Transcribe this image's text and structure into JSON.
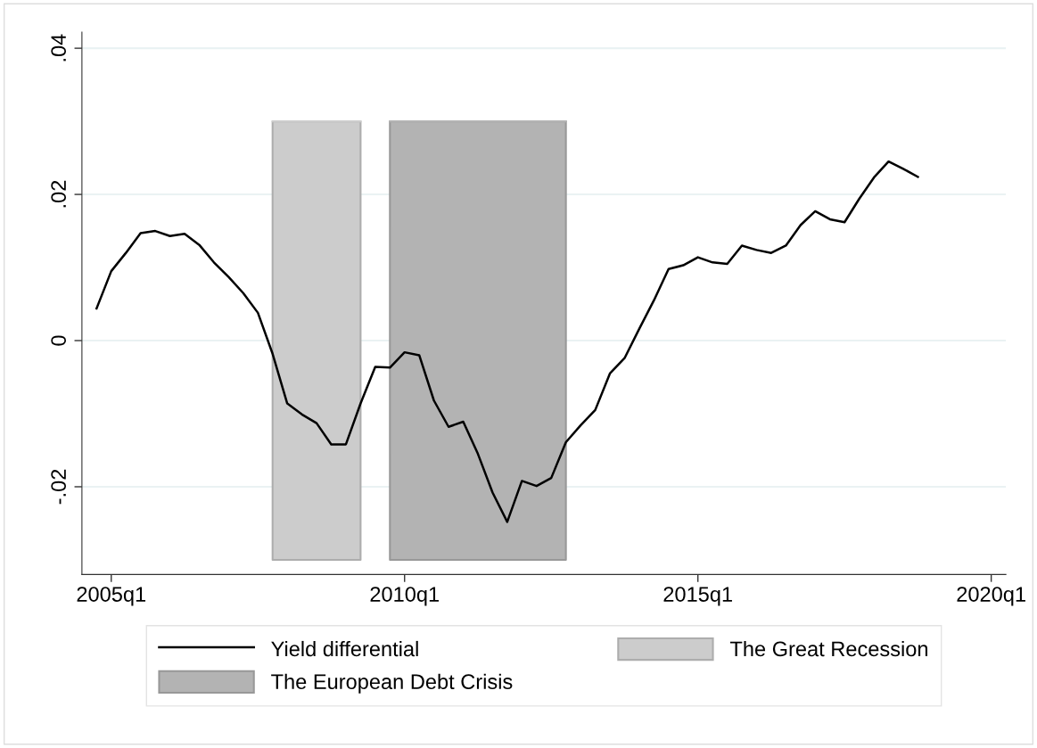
{
  "chart_data": {
    "type": "line",
    "x": [
      "2004-10",
      "2005-01",
      "2005-04",
      "2005-07",
      "2005-10",
      "2006-01",
      "2006-04",
      "2006-07",
      "2006-10",
      "2007-01",
      "2007-04",
      "2007-07",
      "2007-10",
      "2008-01",
      "2008-04",
      "2008-07",
      "2008-10",
      "2009-01",
      "2009-04",
      "2009-07",
      "2009-10",
      "2010-01",
      "2010-04",
      "2010-07",
      "2010-10",
      "2011-01",
      "2011-04",
      "2011-07",
      "2011-10",
      "2012-01",
      "2012-04",
      "2012-07",
      "2012-10",
      "2013-01",
      "2013-04",
      "2013-07",
      "2013-10",
      "2014-01",
      "2014-04",
      "2014-07",
      "2014-10",
      "2015-01",
      "2015-04",
      "2015-07",
      "2015-10",
      "2016-01",
      "2016-04",
      "2016-07",
      "2016-10",
      "2017-01",
      "2017-04",
      "2017-07",
      "2017-10",
      "2018-01",
      "2018-04",
      "2018-07",
      "2018-10"
    ],
    "series": [
      {
        "name": "Yield differential",
        "color": "#000000",
        "values": [
          0.0044,
          0.0095,
          0.012,
          0.0147,
          0.015,
          0.0143,
          0.0146,
          0.0131,
          0.0107,
          0.0087,
          0.0065,
          0.0038,
          -0.0018,
          -0.0086,
          -0.0101,
          -0.0113,
          -0.0142,
          -0.0142,
          -0.0086,
          -0.0036,
          -0.0037,
          -0.0016,
          -0.002,
          -0.0082,
          -0.0118,
          -0.0111,
          -0.0155,
          -0.0208,
          -0.0248,
          -0.0192,
          -0.0199,
          -0.0188,
          -0.0139,
          -0.0116,
          -0.0095,
          -0.0045,
          -0.0024,
          0.0016,
          0.0055,
          0.0098,
          0.0103,
          0.0114,
          0.0107,
          0.0105,
          0.013,
          0.0124,
          0.012,
          0.013,
          0.0158,
          0.0177,
          0.0166,
          0.0162,
          0.0194,
          0.0223,
          0.0245,
          0.0235,
          0.0224
        ]
      },
      {
        "name": "The Great Recession",
        "type": "line",
        "color": "#cccccc",
        "x": [
          "2007-10",
          "2009-04"
        ],
        "values": [
          0.03,
          0.03
        ],
        "lower": [
          -0.03,
          -0.03
        ],
        "upper": [
          0.03,
          0.03
        ]
      },
      {
        "name": "The European Debt Crisis",
        "type": "line",
        "color": "#b3b3b3",
        "x": [
          "2009-10",
          "2012-10"
        ],
        "values": [
          0.03,
          0.03
        ],
        "lower": [
          -0.03,
          -0.03
        ],
        "upper": [
          0.03,
          0.03
        ]
      }
    ],
    "xlim": [
      "2004-07",
      "2020-04"
    ],
    "xticks": [
      {
        "value": "2005-01",
        "label": "2005q1"
      },
      {
        "value": "2010-01",
        "label": "2010q1"
      },
      {
        "value": "2015-01",
        "label": "2015q1"
      },
      {
        "value": "2020-01",
        "label": "2020q1"
      }
    ],
    "ylim": [
      -0.032,
      0.0422
    ],
    "yticks": [
      {
        "value": -0.02,
        "label": "-.02"
      },
      {
        "value": 0,
        "label": "0"
      },
      {
        "value": 0.02,
        "label": ".02"
      },
      {
        "value": 0.04,
        "label": ".04"
      }
    ],
    "grid": "y",
    "legend": "bottom",
    "line_style": "solid",
    "marker": "none"
  }
}
